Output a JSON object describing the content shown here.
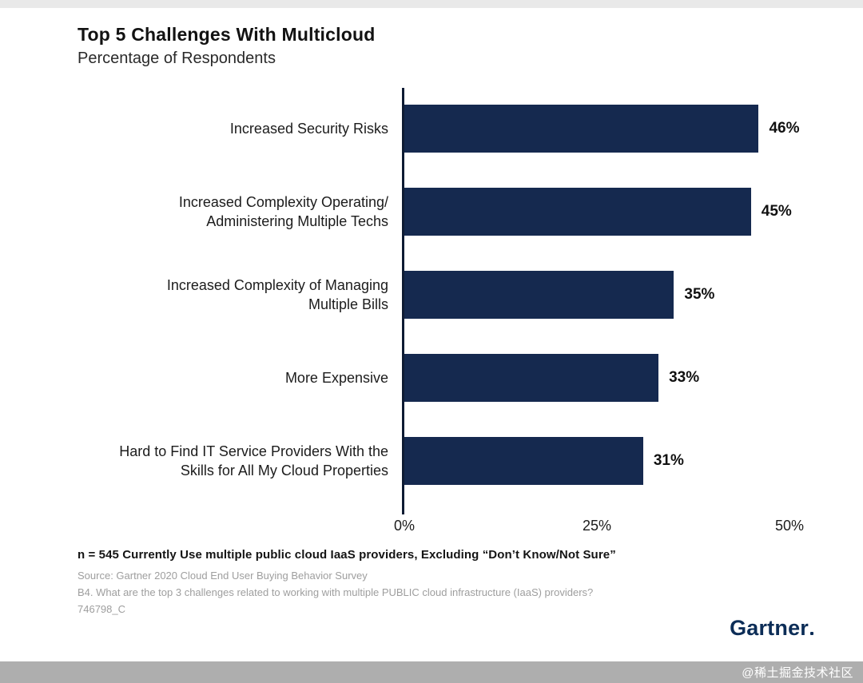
{
  "header": {
    "title": "Top 5 Challenges With Multicloud",
    "subtitle": "Percentage of Respondents"
  },
  "chart_data": {
    "type": "bar",
    "orientation": "horizontal",
    "title": "Top 5 Challenges With Multicloud",
    "subtitle": "Percentage of Respondents",
    "categories": [
      "Increased Security Risks",
      "Increased Complexity Operating/\nAdministering Multiple Techs",
      "Increased Complexity of Managing\nMultiple Bills",
      "More Expensive",
      "Hard to Find IT Service Providers With the\nSkills for All My Cloud Properties"
    ],
    "values": [
      46,
      45,
      35,
      33,
      31
    ],
    "value_labels": [
      "46%",
      "45%",
      "35%",
      "33%",
      "31%"
    ],
    "xlabel": "",
    "ylabel": "",
    "xlim": [
      0,
      50
    ],
    "x_ticks": [
      "0%",
      "25%",
      "50%"
    ],
    "grid": false,
    "legend": false,
    "bar_color": "#15294f",
    "axis_color": "#0e1b33"
  },
  "footnotes": {
    "line1": "n = 545 Currently Use multiple public cloud IaaS providers,  Excluding “Don’t Know/Not Sure”",
    "line2": "Source: Gartner 2020 Cloud End User Buying Behavior Survey",
    "line3": "B4. What are the top 3 challenges related to working with multiple PUBLIC cloud infrastructure (IaaS) providers?",
    "line4": "746798_C"
  },
  "branding": {
    "logo": "Gartner"
  },
  "frame": {
    "watermark": "@稀土掘金技术社区"
  }
}
